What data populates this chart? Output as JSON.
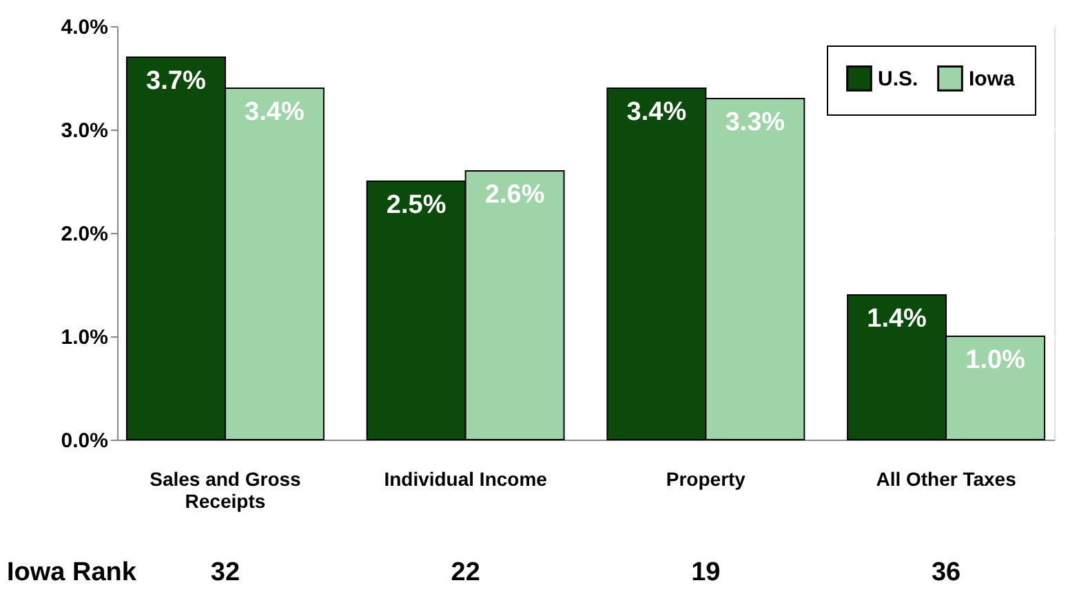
{
  "chart_data": {
    "type": "bar",
    "categories": [
      "Sales and Gross Receipts",
      "Individual Income",
      "Property",
      "All Other Taxes"
    ],
    "series": [
      {
        "name": "U.S.",
        "color": "#0b4a0b",
        "values": [
          3.7,
          2.5,
          3.4,
          1.4
        ],
        "value_labels": [
          "3.7%",
          "2.5%",
          "3.4%",
          "1.4%"
        ]
      },
      {
        "name": "Iowa",
        "color": "#9fd3a8",
        "values": [
          3.4,
          2.6,
          3.3,
          1.0
        ],
        "value_labels": [
          "3.4%",
          "2.6%",
          "3.3%",
          "1.0%"
        ]
      }
    ],
    "ylim": [
      0,
      4
    ],
    "yticks": [
      {
        "value": 0,
        "label": "0.0%"
      },
      {
        "value": 1,
        "label": "1.0%"
      },
      {
        "value": 2,
        "label": "2.0%"
      },
      {
        "value": 3,
        "label": "3.0%"
      },
      {
        "value": 4,
        "label": "4.0%"
      }
    ],
    "grid": "y",
    "legend": "top right",
    "annotations": [
      "Iowa Rank",
      "32",
      "22",
      "19",
      "36"
    ]
  }
}
